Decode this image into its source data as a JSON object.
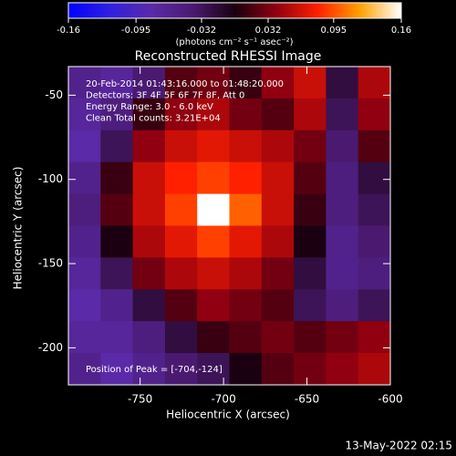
{
  "chart_data": {
    "type": "heatmap",
    "title": "Reconstructed RHESSI Image",
    "x_label": "Heliocentric X (arcsec)",
    "y_label": "Heliocentric Y (arcsec)",
    "colorbar_label": "(photons cm⁻² s⁻¹ asec⁻²)",
    "info": [
      "20-Feb-2014 01:43:16.000 to 01:48:20.000",
      "Detectors: 3F 4F 5F 6F 7F 8F, Att 0",
      "Energy Range: 3.0 - 6.0 keV",
      "Clean    Total counts: 3.21E+04"
    ],
    "peak_label": "Position of Peak = [-704,-124]",
    "footer": "13-May-2022 02:15",
    "xlim": [
      -793,
      -600
    ],
    "xticks": [
      -750,
      -700,
      -650,
      -600
    ],
    "ylim": [
      -222,
      -33
    ],
    "yticks": [
      -50,
      -100,
      -150,
      -200
    ],
    "clim": [
      -0.16,
      0.16
    ],
    "cticks": [
      -0.16,
      -0.095,
      -0.032,
      0.032,
      0.095,
      0.16
    ],
    "colormap": [
      "#0000ff",
      "#3020e0",
      "#5a2aa8",
      "#4a1a70",
      "#1a0010",
      "#900010",
      "#ff2000",
      "#ffa000",
      "#ffffff"
    ],
    "z": [
      [
        -0.06,
        -0.07,
        -0.04,
        0.02,
        0.03,
        0.01,
        0.04,
        0.06,
        -0.02,
        0.05
      ],
      [
        -0.07,
        -0.05,
        0.01,
        0.04,
        0.05,
        0.03,
        0.02,
        0.05,
        -0.03,
        0.04
      ],
      [
        -0.08,
        -0.03,
        0.04,
        0.06,
        0.07,
        0.06,
        0.05,
        0.03,
        -0.04,
        0.02
      ],
      [
        -0.06,
        0.01,
        0.06,
        0.08,
        0.09,
        0.08,
        0.06,
        0.02,
        -0.05,
        -0.02
      ],
      [
        -0.05,
        0.02,
        0.06,
        0.09,
        0.16,
        0.1,
        0.06,
        0.01,
        -0.05,
        -0.03
      ],
      [
        -0.06,
        0,
        0.05,
        0.07,
        0.09,
        0.07,
        0.05,
        0,
        -0.06,
        -0.04
      ],
      [
        -0.07,
        -0.03,
        0.03,
        0.05,
        0.06,
        0.05,
        0.03,
        -0.02,
        -0.06,
        -0.05
      ],
      [
        -0.08,
        -0.06,
        -0.02,
        0.02,
        0.04,
        0.03,
        0.02,
        -0.03,
        -0.05,
        -0.03
      ],
      [
        -0.07,
        -0.07,
        -0.05,
        -0.02,
        0.01,
        0.02,
        0.03,
        0.02,
        0.03,
        0.04
      ],
      [
        -0.06,
        -0.08,
        -0.06,
        -0.04,
        -0.03,
        0,
        0.02,
        0.03,
        0.04,
        0.05
      ]
    ]
  }
}
